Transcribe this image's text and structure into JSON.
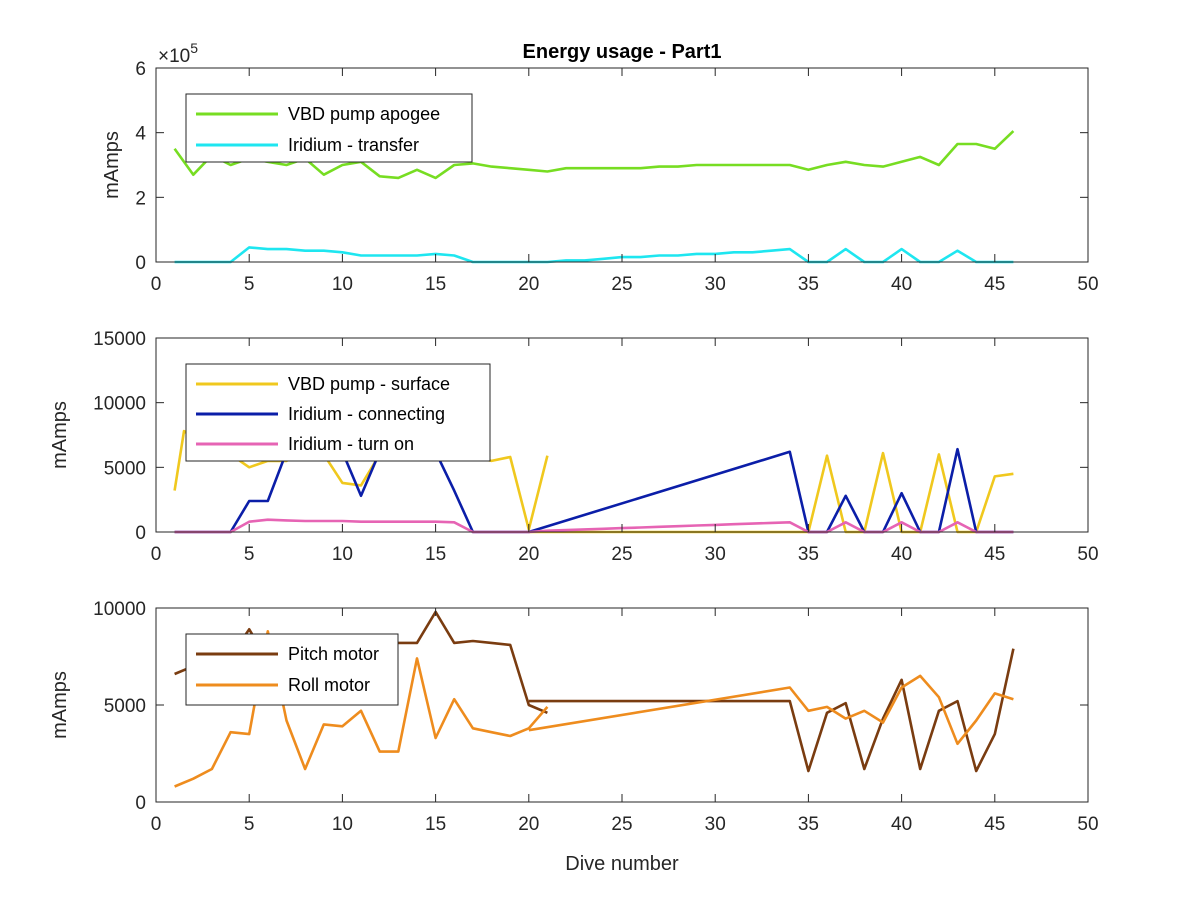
{
  "chart_data": [
    {
      "type": "line",
      "title": "Energy usage - Part1",
      "xlabel": "",
      "ylabel": "mAmps",
      "xlim": [
        0,
        50
      ],
      "ylim": [
        0,
        6
      ],
      "y_multiplier_label": "×10",
      "y_multiplier_exponent": "5",
      "xticks": [
        0,
        5,
        10,
        15,
        20,
        25,
        30,
        35,
        40,
        45,
        50
      ],
      "yticks": [
        0,
        2,
        4,
        6
      ],
      "legend_position": "top-left",
      "series": [
        {
          "name": "VBD pump apogee",
          "color": "#77dd22",
          "x": [
            1,
            2,
            3,
            4,
            5,
            6,
            7,
            8,
            9,
            10,
            11,
            12,
            13,
            14,
            15,
            16,
            17,
            18,
            19,
            20,
            21,
            22,
            23,
            24,
            25,
            26,
            27,
            28,
            29,
            30,
            31,
            32,
            33,
            34,
            35,
            36,
            37,
            38,
            39,
            40,
            41,
            42,
            43,
            44,
            45,
            46
          ],
          "values": [
            3.5,
            2.7,
            3.3,
            3.0,
            3.2,
            3.1,
            3.0,
            3.2,
            2.7,
            3.0,
            3.1,
            2.65,
            2.6,
            2.85,
            2.6,
            3.0,
            3.05,
            2.95,
            2.9,
            2.85,
            2.8,
            2.9,
            2.9,
            2.9,
            2.9,
            2.9,
            2.95,
            2.95,
            3.0,
            3.0,
            3.0,
            3.0,
            3.0,
            3.0,
            2.85,
            3.0,
            3.1,
            3.0,
            2.95,
            3.1,
            3.25,
            3.0,
            3.65,
            3.65,
            3.5,
            4.05
          ]
        },
        {
          "name": "Iridium - transfer",
          "color": "#1ee6f0",
          "x": [
            1,
            2,
            3,
            4,
            5,
            6,
            7,
            8,
            9,
            10,
            11,
            12,
            13,
            14,
            15,
            16,
            17,
            18,
            19,
            20,
            21,
            22,
            23,
            24,
            25,
            26,
            27,
            28,
            29,
            30,
            31,
            32,
            33,
            34,
            35,
            36,
            37,
            38,
            39,
            40,
            41,
            42,
            43,
            44,
            45,
            46
          ],
          "values": [
            0,
            0,
            0,
            0,
            0.45,
            0.4,
            0.4,
            0.35,
            0.35,
            0.3,
            0.2,
            0.2,
            0.2,
            0.2,
            0.25,
            0.2,
            0,
            0,
            0,
            0,
            0,
            0.05,
            0.05,
            0.1,
            0.15,
            0.15,
            0.2,
            0.2,
            0.25,
            0.25,
            0.3,
            0.3,
            0.35,
            0.4,
            0,
            0,
            0.4,
            0,
            0,
            0.4,
            0,
            0,
            0.35,
            0,
            0,
            0
          ]
        }
      ]
    },
    {
      "type": "line",
      "title": "",
      "xlabel": "",
      "ylabel": "mAmps",
      "xlim": [
        0,
        50
      ],
      "ylim": [
        0,
        15000
      ],
      "xticks": [
        0,
        5,
        10,
        15,
        20,
        25,
        30,
        35,
        40,
        45,
        50
      ],
      "yticks": [
        0,
        5000,
        10000,
        15000
      ],
      "legend_position": "top-left",
      "series": [
        {
          "name": "VBD pump - surface",
          "color": "#f0c81e",
          "x": [
            1,
            1.5,
            3,
            4,
            5,
            6,
            7,
            8,
            9,
            10,
            11,
            12,
            13,
            14,
            15,
            16,
            17,
            18,
            19,
            20,
            21,
            null,
            20,
            21,
            22,
            23,
            24,
            25,
            26,
            27,
            28,
            29,
            30,
            31,
            32,
            33,
            34,
            35,
            36,
            37,
            38,
            39,
            40,
            41,
            42,
            43,
            44,
            45,
            46
          ],
          "values": [
            3200,
            7800,
            6200,
            6000,
            5000,
            5500,
            5500,
            6500,
            6000,
            3800,
            3600,
            6000,
            6000,
            6000,
            6500,
            6000,
            5800,
            5500,
            5800,
            200,
            5900,
            null,
            0,
            0,
            0,
            0,
            0,
            0,
            0,
            0,
            0,
            0,
            0,
            0,
            0,
            0,
            0,
            0,
            5900,
            0,
            0,
            6100,
            0,
            0,
            6000,
            0,
            0,
            4300,
            4500
          ]
        },
        {
          "name": "Iridium - connecting",
          "color": "#0b1ea8",
          "x": [
            1,
            2,
            3,
            4,
            5,
            6,
            7,
            8,
            9,
            10,
            11,
            12,
            13,
            14,
            15,
            16,
            17,
            18,
            19,
            20,
            34,
            35,
            36,
            37,
            38,
            39,
            40,
            41,
            42,
            43,
            44,
            45,
            46
          ],
          "values": [
            0,
            0,
            0,
            0,
            2400,
            2400,
            6200,
            6200,
            6200,
            6200,
            2800,
            6200,
            6200,
            6200,
            6200,
            3200,
            0,
            0,
            0,
            0,
            6200,
            0,
            0,
            2800,
            0,
            0,
            3000,
            0,
            0,
            6400,
            0,
            0,
            0
          ]
        },
        {
          "name": "Iridium - turn on",
          "color": "#e664b4",
          "x": [
            1,
            2,
            3,
            4,
            5,
            6,
            7,
            8,
            9,
            10,
            11,
            12,
            13,
            14,
            15,
            16,
            17,
            18,
            19,
            20,
            21,
            22,
            23,
            24,
            25,
            26,
            27,
            28,
            29,
            30,
            31,
            32,
            33,
            34,
            35,
            36,
            37,
            38,
            39,
            40,
            41,
            42,
            43,
            44,
            45,
            46
          ],
          "values": [
            0,
            0,
            0,
            0,
            800,
            950,
            900,
            850,
            850,
            850,
            800,
            800,
            800,
            800,
            800,
            750,
            0,
            0,
            0,
            0,
            100,
            150,
            200,
            250,
            300,
            350,
            400,
            450,
            500,
            550,
            600,
            650,
            700,
            750,
            0,
            0,
            750,
            0,
            0,
            750,
            0,
            0,
            750,
            0,
            0,
            0
          ]
        }
      ]
    },
    {
      "type": "line",
      "title": "",
      "xlabel": "Dive number",
      "ylabel": "mAmps",
      "xlim": [
        0,
        50
      ],
      "ylim": [
        0,
        10000
      ],
      "xticks": [
        0,
        5,
        10,
        15,
        20,
        25,
        30,
        35,
        40,
        45,
        50
      ],
      "yticks": [
        0,
        5000,
        10000
      ],
      "legend_position": "top-left",
      "series": [
        {
          "name": "Pitch motor",
          "color": "#7a3c10",
          "x": [
            1,
            2,
            3,
            4,
            5,
            6,
            7,
            8,
            9,
            10,
            11,
            12,
            13,
            14,
            15,
            16,
            17,
            18,
            19,
            20,
            21,
            null,
            20,
            34,
            35,
            36,
            37,
            38,
            39,
            40,
            41,
            42,
            43,
            44,
            45,
            46
          ],
          "values": [
            6600,
            7000,
            7200,
            7500,
            8900,
            7300,
            7400,
            7600,
            7700,
            7800,
            8000,
            8200,
            8200,
            8200,
            9800,
            8200,
            8300,
            8200,
            8100,
            5000,
            4600,
            null,
            5200,
            5200,
            1600,
            4600,
            5100,
            1700,
            4300,
            6300,
            1700,
            4700,
            5200,
            1600,
            3500,
            7900
          ]
        },
        {
          "name": "Roll motor",
          "color": "#ee8c1e",
          "x": [
            1,
            2,
            3,
            4,
            5,
            6,
            7,
            8,
            9,
            10,
            11,
            12,
            13,
            14,
            15,
            16,
            17,
            18,
            19,
            20,
            21,
            null,
            20,
            34,
            35,
            36,
            37,
            38,
            39,
            40,
            41,
            42,
            43,
            44,
            45,
            46
          ],
          "values": [
            800,
            1200,
            1700,
            3600,
            3500,
            8800,
            4200,
            1700,
            4000,
            3900,
            4700,
            2600,
            2600,
            7400,
            3300,
            5300,
            3800,
            3600,
            3400,
            3800,
            4900,
            null,
            3700,
            5900,
            4700,
            4900,
            4300,
            4700,
            4100,
            5900,
            6500,
            5400,
            3000,
            4200,
            5600,
            5300
          ]
        }
      ]
    }
  ]
}
